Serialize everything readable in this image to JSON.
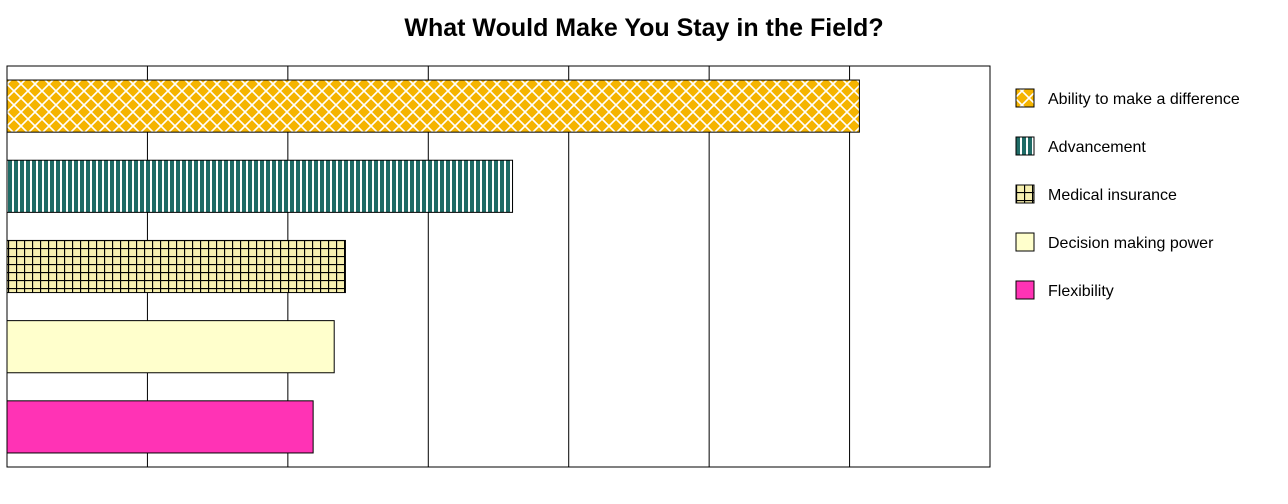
{
  "chart_data": {
    "type": "bar",
    "orientation": "horizontal",
    "title": "What Would Make You Stay in the Field?",
    "xlabel": "",
    "ylabel": "",
    "xlim": [
      0,
      7
    ],
    "grid": true,
    "legend_position": "right",
    "series": [
      {
        "name": "Ability to make a difference",
        "value": 6.07,
        "color": "#f5b400",
        "pattern": "diamond-lattice"
      },
      {
        "name": "Advancement",
        "value": 3.6,
        "color": "#1f6b66",
        "pattern": "vertical-stripes"
      },
      {
        "name": "Medical insurance",
        "value": 2.41,
        "color": "#f7f0b0",
        "pattern": "grid"
      },
      {
        "name": "Decision making power",
        "value": 2.33,
        "color": "#ffffcc",
        "pattern": "solid"
      },
      {
        "name": "Flexibility",
        "value": 2.18,
        "color": "#ff33b5",
        "pattern": "solid"
      }
    ]
  }
}
